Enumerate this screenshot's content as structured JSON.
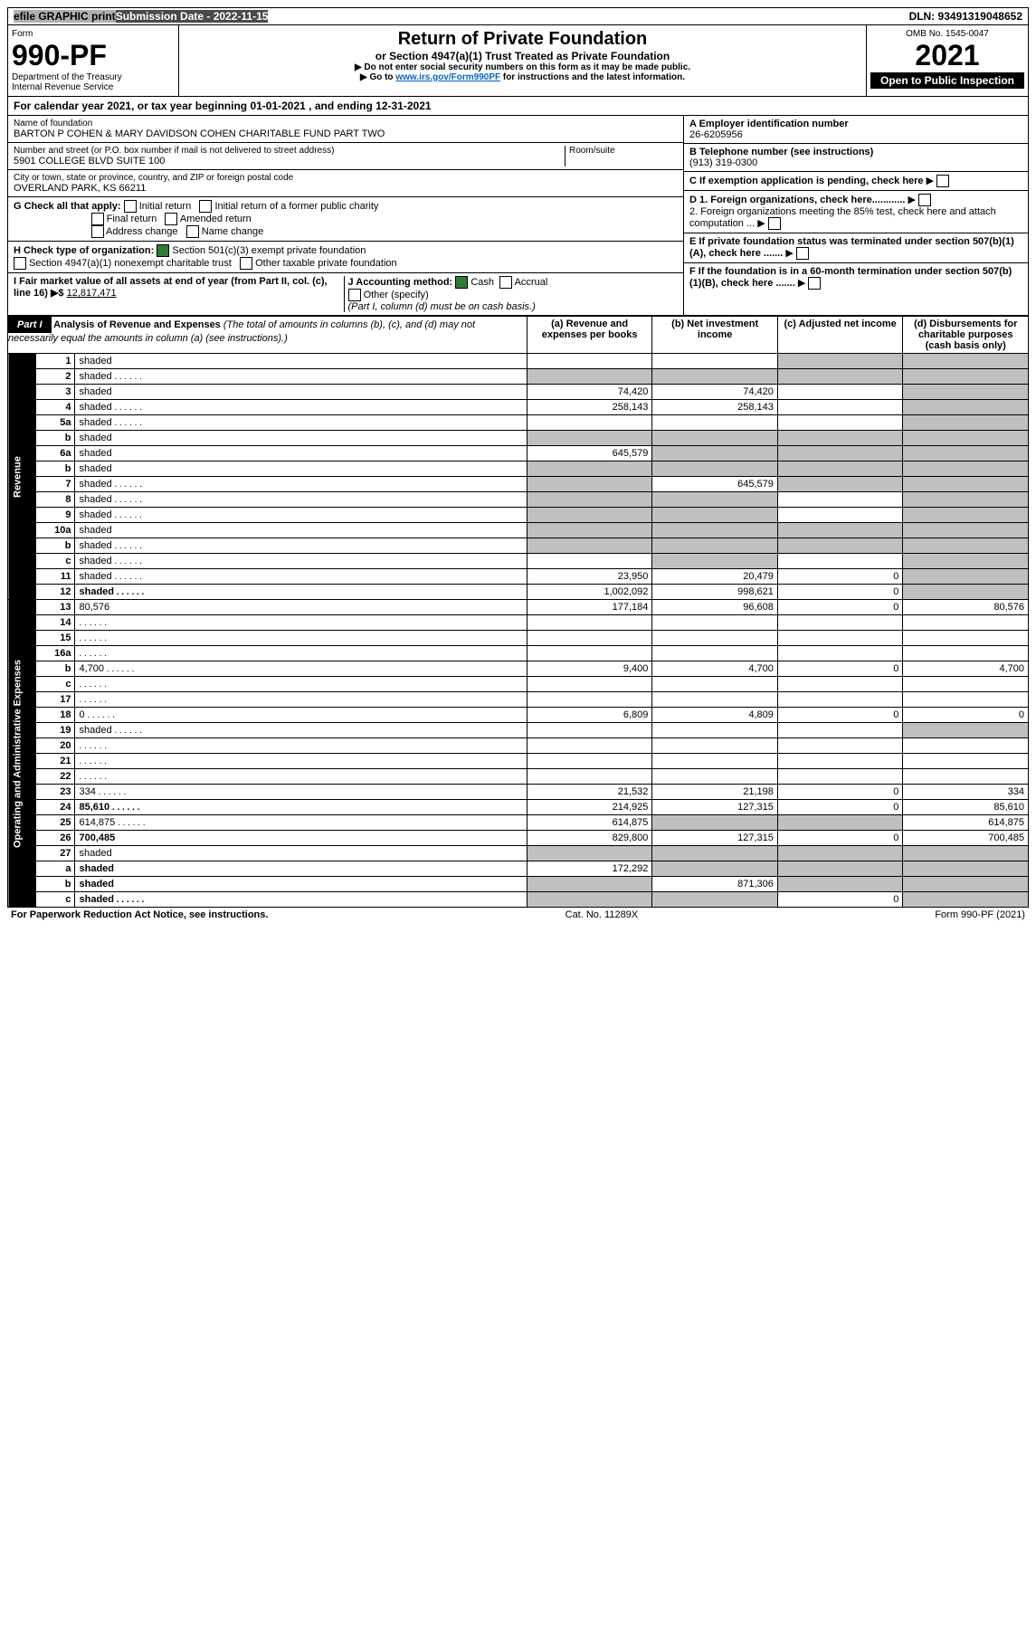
{
  "top": {
    "efile": "efile GRAPHIC print",
    "submission": "Submission Date - 2022-11-15",
    "dln": "DLN: 93491319048652"
  },
  "header": {
    "form": "Form",
    "form_num": "990-PF",
    "dept": "Department of the Treasury",
    "irs": "Internal Revenue Service",
    "title": "Return of Private Foundation",
    "subtitle": "or Section 4947(a)(1) Trust Treated as Private Foundation",
    "note1": "▶ Do not enter social security numbers on this form as it may be made public.",
    "note2": "▶ Go to ",
    "link": "www.irs.gov/Form990PF",
    "note2b": " for instructions and the latest information.",
    "omb": "OMB No. 1545-0047",
    "year": "2021",
    "open": "Open to Public Inspection"
  },
  "cal_year": "For calendar year 2021, or tax year beginning 01-01-2021             , and ending 12-31-2021",
  "entity": {
    "name_label": "Name of foundation",
    "name": "BARTON P COHEN & MARY DAVIDSON COHEN CHARITABLE FUND PART TWO",
    "addr_label": "Number and street (or P.O. box number if mail is not delivered to street address)",
    "addr": "5901 COLLEGE BLVD SUITE 100",
    "room_label": "Room/suite",
    "city_label": "City or town, state or province, country, and ZIP or foreign postal code",
    "city": "OVERLAND PARK, KS  66211",
    "ein_label": "A Employer identification number",
    "ein": "26-6205956",
    "phone_label": "B Telephone number (see instructions)",
    "phone": "(913) 319-0300",
    "c_label": "C If exemption application is pending, check here",
    "d1": "D 1. Foreign organizations, check here............",
    "d2": "2. Foreign organizations meeting the 85% test, check here and attach computation ...",
    "e": "E  If private foundation status was terminated under section 507(b)(1)(A), check here .......",
    "f": "F  If the foundation is in a 60-month termination under section 507(b)(1)(B), check here .......",
    "g_label": "G Check all that apply:",
    "g_opts": [
      "Initial return",
      "Initial return of a former public charity",
      "Final return",
      "Amended return",
      "Address change",
      "Name change"
    ],
    "h_label": "H Check type of organization:",
    "h1": "Section 501(c)(3) exempt private foundation",
    "h2": "Section 4947(a)(1) nonexempt charitable trust",
    "h3": "Other taxable private foundation",
    "i_label": "I Fair market value of all assets at end of year (from Part II, col. (c), line 16) ▶$ ",
    "i_val": "12,817,471",
    "j_label": "J Accounting method:",
    "j_cash": "Cash",
    "j_accrual": "Accrual",
    "j_other": "Other (specify)",
    "j_note": "(Part I, column (d) must be on cash basis.)"
  },
  "part1": {
    "label": "Part I",
    "title": "Analysis of Revenue and Expenses",
    "title_note": " (The total of amounts in columns (b), (c), and (d) may not necessarily equal the amounts in column (a) (see instructions).)",
    "col_a": "(a)   Revenue and expenses per books",
    "col_b": "(b)   Net investment income",
    "col_c": "(c)   Adjusted net income",
    "col_d": "(d)   Disbursements for charitable purposes (cash basis only)"
  },
  "side_rev": "Revenue",
  "side_exp": "Operating and Administrative Expenses",
  "rows": [
    {
      "n": "1",
      "d": "shaded",
      "a": "",
      "b": "",
      "c": "shaded"
    },
    {
      "n": "2",
      "d": "shaded",
      "a": "shaded",
      "b": "shaded",
      "c": "shaded",
      "dot": true
    },
    {
      "n": "3",
      "d": "shaded",
      "a": "74,420",
      "b": "74,420",
      "c": ""
    },
    {
      "n": "4",
      "d": "shaded",
      "a": "258,143",
      "b": "258,143",
      "c": "",
      "dot": true
    },
    {
      "n": "5a",
      "d": "shaded",
      "a": "",
      "b": "",
      "c": "",
      "dot": true
    },
    {
      "n": "b",
      "d": "shaded",
      "a": "shaded",
      "b": "shaded",
      "c": "shaded"
    },
    {
      "n": "6a",
      "d": "shaded",
      "a": "645,579",
      "b": "shaded",
      "c": "shaded"
    },
    {
      "n": "b",
      "d": "shaded",
      "a": "shaded",
      "b": "shaded",
      "c": "shaded"
    },
    {
      "n": "7",
      "d": "shaded",
      "a": "shaded",
      "b": "645,579",
      "c": "shaded",
      "dot": true
    },
    {
      "n": "8",
      "d": "shaded",
      "a": "shaded",
      "b": "shaded",
      "c": "",
      "dot": true
    },
    {
      "n": "9",
      "d": "shaded",
      "a": "shaded",
      "b": "shaded",
      "c": "",
      "dot": true
    },
    {
      "n": "10a",
      "d": "shaded",
      "a": "shaded",
      "b": "shaded",
      "c": "shaded"
    },
    {
      "n": "b",
      "d": "shaded",
      "a": "shaded",
      "b": "shaded",
      "c": "shaded",
      "dot": true
    },
    {
      "n": "c",
      "d": "shaded",
      "a": "",
      "b": "shaded",
      "c": "",
      "dot": true
    },
    {
      "n": "11",
      "d": "shaded",
      "a": "23,950",
      "b": "20,479",
      "c": "0",
      "dot": true
    },
    {
      "n": "12",
      "d": "shaded",
      "a": "1,002,092",
      "b": "998,621",
      "c": "0",
      "bold": true,
      "dot": true
    },
    {
      "n": "13",
      "d": "80,576",
      "a": "177,184",
      "b": "96,608",
      "c": "0"
    },
    {
      "n": "14",
      "d": "",
      "a": "",
      "b": "",
      "c": "",
      "dot": true
    },
    {
      "n": "15",
      "d": "",
      "a": "",
      "b": "",
      "c": "",
      "dot": true
    },
    {
      "n": "16a",
      "d": "",
      "a": "",
      "b": "",
      "c": "",
      "dot": true
    },
    {
      "n": "b",
      "d": "4,700",
      "a": "9,400",
      "b": "4,700",
      "c": "0",
      "dot": true
    },
    {
      "n": "c",
      "d": "",
      "a": "",
      "b": "",
      "c": "",
      "dot": true
    },
    {
      "n": "17",
      "d": "",
      "a": "",
      "b": "",
      "c": "",
      "dot": true
    },
    {
      "n": "18",
      "d": "0",
      "a": "6,809",
      "b": "4,809",
      "c": "0",
      "dot": true
    },
    {
      "n": "19",
      "d": "shaded",
      "a": "",
      "b": "",
      "c": "",
      "dot": true
    },
    {
      "n": "20",
      "d": "",
      "a": "",
      "b": "",
      "c": "",
      "dot": true
    },
    {
      "n": "21",
      "d": "",
      "a": "",
      "b": "",
      "c": "",
      "dot": true
    },
    {
      "n": "22",
      "d": "",
      "a": "",
      "b": "",
      "c": "",
      "dot": true
    },
    {
      "n": "23",
      "d": "334",
      "a": "21,532",
      "b": "21,198",
      "c": "0",
      "dot": true
    },
    {
      "n": "24",
      "d": "85,610",
      "a": "214,925",
      "b": "127,315",
      "c": "0",
      "bold": true,
      "dot": true
    },
    {
      "n": "25",
      "d": "614,875",
      "a": "614,875",
      "b": "shaded",
      "c": "shaded",
      "dot": true
    },
    {
      "n": "26",
      "d": "700,485",
      "a": "829,800",
      "b": "127,315",
      "c": "0",
      "bold": true
    },
    {
      "n": "27",
      "d": "shaded",
      "a": "shaded",
      "b": "shaded",
      "c": "shaded"
    },
    {
      "n": "a",
      "d": "shaded",
      "a": "172,292",
      "b": "shaded",
      "c": "shaded",
      "bold": true
    },
    {
      "n": "b",
      "d": "shaded",
      "a": "shaded",
      "b": "871,306",
      "c": "shaded",
      "bold": true
    },
    {
      "n": "c",
      "d": "shaded",
      "a": "shaded",
      "b": "shaded",
      "c": "0",
      "bold": true,
      "dot": true
    }
  ],
  "footer": {
    "left": "For Paperwork Reduction Act Notice, see instructions.",
    "mid": "Cat. No. 11289X",
    "right": "Form 990-PF (2021)"
  }
}
